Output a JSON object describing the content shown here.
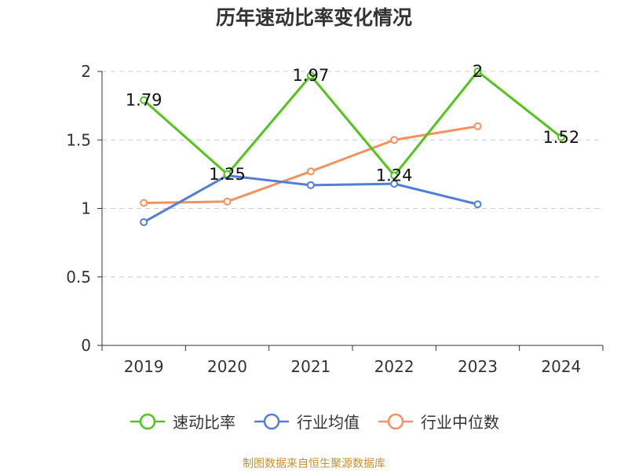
{
  "title": "历年速动比率变化情况",
  "source": "制图数据来自恒生聚源数据库",
  "chart_data": {
    "type": "line",
    "title": "历年速动比率变化情况",
    "categories": [
      "2019",
      "2020",
      "2021",
      "2022",
      "2023",
      "2024"
    ],
    "ylim": [
      0,
      2
    ],
    "yticks": [
      0,
      0.5,
      1,
      1.5,
      2
    ],
    "ytick_labels": [
      "0",
      "0.5",
      "1",
      "1.5",
      "2"
    ],
    "grid": true,
    "legend_position": "bottom",
    "series": [
      {
        "name": "速动比率",
        "color": "#52c41a",
        "values": [
          1.79,
          1.25,
          1.97,
          1.24,
          2,
          1.52
        ],
        "labels": [
          "1.79",
          "1.25",
          "1.97",
          "1.24",
          "2",
          "1.52"
        ]
      },
      {
        "name": "行业均值",
        "color": "#4f7fd8",
        "values": [
          0.9,
          1.24,
          1.17,
          1.18,
          1.03,
          null
        ]
      },
      {
        "name": "行业中位数",
        "color": "#f5915d",
        "values": [
          1.04,
          1.05,
          1.27,
          1.5,
          1.6,
          null
        ]
      }
    ]
  }
}
